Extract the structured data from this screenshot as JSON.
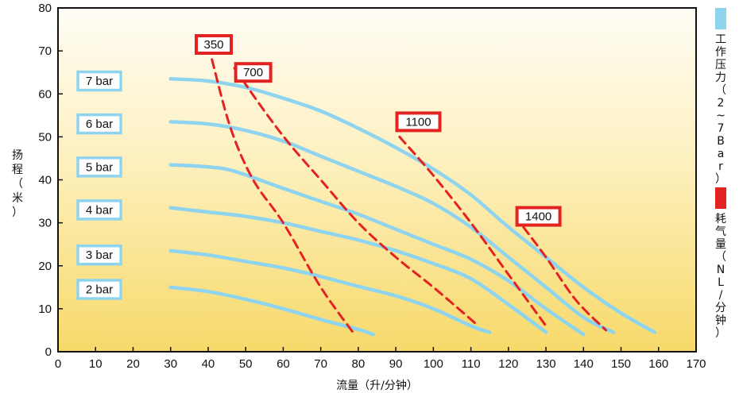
{
  "chart_data": {
    "type": "line",
    "xlabel": "流量（升/分钟）",
    "ylabel": "扬程（米）",
    "xlim": [
      0,
      170
    ],
    "ylim": [
      0,
      80
    ],
    "x_ticks": [
      "0",
      "10",
      "20",
      "30",
      "40",
      "50",
      "60",
      "70",
      "80",
      "90",
      "100",
      "110",
      "120",
      "130",
      "140",
      "150",
      "160",
      "170"
    ],
    "y_ticks": [
      "0",
      "10",
      "20",
      "30",
      "40",
      "50",
      "60",
      "70",
      "80"
    ],
    "grid": false,
    "legend_position": "right",
    "legend": [
      {
        "label": "工作压力（2~7Bar）",
        "color": "#8fd4ee"
      },
      {
        "label": "耗气量（NL/分钟）",
        "color": "#e32222"
      }
    ],
    "series": [
      {
        "name": "2 bar",
        "kind": "pressure",
        "color": "#8fd4ee",
        "points": [
          [
            30,
            15
          ],
          [
            40,
            14
          ],
          [
            50,
            12.2
          ],
          [
            60,
            10
          ],
          [
            70,
            7.5
          ],
          [
            80,
            5.2
          ],
          [
            84,
            4
          ]
        ]
      },
      {
        "name": "3 bar",
        "kind": "pressure",
        "color": "#8fd4ee",
        "points": [
          [
            30,
            23.5
          ],
          [
            40,
            22.5
          ],
          [
            50,
            21
          ],
          [
            60,
            19.5
          ],
          [
            70,
            17.5
          ],
          [
            80,
            15.2
          ],
          [
            90,
            13
          ],
          [
            100,
            10
          ],
          [
            110,
            6
          ],
          [
            115,
            4.5
          ]
        ]
      },
      {
        "name": "4 bar",
        "kind": "pressure",
        "color": "#8fd4ee",
        "points": [
          [
            30,
            33.5
          ],
          [
            40,
            32.5
          ],
          [
            50,
            31.5
          ],
          [
            60,
            30
          ],
          [
            70,
            28
          ],
          [
            80,
            26
          ],
          [
            90,
            23.5
          ],
          [
            100,
            20.5
          ],
          [
            110,
            17
          ],
          [
            120,
            11
          ],
          [
            130,
            4.5
          ]
        ]
      },
      {
        "name": "5 bar",
        "kind": "pressure",
        "color": "#8fd4ee",
        "points": [
          [
            30,
            43.5
          ],
          [
            40,
            43
          ],
          [
            47,
            42
          ],
          [
            60,
            38
          ],
          [
            70,
            35
          ],
          [
            80,
            32
          ],
          [
            90,
            28.5
          ],
          [
            100,
            25
          ],
          [
            110,
            21.5
          ],
          [
            120,
            16.5
          ],
          [
            130,
            10
          ],
          [
            140,
            4
          ]
        ]
      },
      {
        "name": "6 bar",
        "kind": "pressure",
        "color": "#8fd4ee",
        "points": [
          [
            30,
            53.5
          ],
          [
            40,
            53
          ],
          [
            50,
            51.5
          ],
          [
            60,
            49
          ],
          [
            70,
            45.5
          ],
          [
            80,
            42
          ],
          [
            90,
            38.5
          ],
          [
            100,
            34.5
          ],
          [
            110,
            29
          ],
          [
            120,
            22
          ],
          [
            130,
            15
          ],
          [
            140,
            8
          ],
          [
            148,
            4.5
          ]
        ]
      },
      {
        "name": "7 bar",
        "kind": "pressure",
        "color": "#8fd4ee",
        "points": [
          [
            30,
            63.5
          ],
          [
            40,
            63
          ],
          [
            50,
            61.5
          ],
          [
            60,
            59
          ],
          [
            70,
            56
          ],
          [
            80,
            52
          ],
          [
            90,
            47.5
          ],
          [
            100,
            42.5
          ],
          [
            110,
            36.5
          ],
          [
            120,
            29
          ],
          [
            130,
            22
          ],
          [
            140,
            15
          ],
          [
            150,
            9
          ],
          [
            159,
            4.5
          ]
        ]
      },
      {
        "name": "350",
        "kind": "air",
        "color": "#e32222",
        "points": [
          [
            41,
            68
          ],
          [
            46,
            52
          ],
          [
            52,
            40
          ],
          [
            60,
            30
          ],
          [
            70,
            15
          ],
          [
            79,
            4
          ]
        ]
      },
      {
        "name": "700",
        "kind": "air",
        "color": "#e32222",
        "points": [
          [
            47,
            66
          ],
          [
            55,
            56
          ],
          [
            62,
            48
          ],
          [
            70,
            40
          ],
          [
            80,
            30
          ],
          [
            90,
            22
          ],
          [
            100,
            15
          ],
          [
            112,
            6
          ]
        ]
      },
      {
        "name": "1100",
        "kind": "air",
        "color": "#e32222",
        "points": [
          [
            91,
            50
          ],
          [
            100,
            41
          ],
          [
            110,
            30
          ],
          [
            120,
            18
          ],
          [
            130,
            6
          ]
        ]
      },
      {
        "name": "1400",
        "kind": "air",
        "color": "#e32222",
        "points": [
          [
            124,
            29
          ],
          [
            130,
            22
          ],
          [
            138,
            12
          ],
          [
            146,
            5
          ]
        ]
      }
    ],
    "annotations": [
      {
        "text": "2 bar",
        "x": 11,
        "y": 14.5,
        "box": "blue"
      },
      {
        "text": "3 bar",
        "x": 11,
        "y": 22.5,
        "box": "blue"
      },
      {
        "text": "4 bar",
        "x": 11,
        "y": 33,
        "box": "blue"
      },
      {
        "text": "5 bar",
        "x": 11,
        "y": 43,
        "box": "blue"
      },
      {
        "text": "6 bar",
        "x": 11,
        "y": 53,
        "box": "blue"
      },
      {
        "text": "7 bar",
        "x": 11,
        "y": 63,
        "box": "blue"
      },
      {
        "text": "350",
        "x": 41.5,
        "y": 71.5,
        "box": "red"
      },
      {
        "text": "700",
        "x": 52,
        "y": 65,
        "box": "red"
      },
      {
        "text": "1100",
        "x": 96,
        "y": 53.5,
        "box": "red"
      },
      {
        "text": "1400",
        "x": 128,
        "y": 31.5,
        "box": "red"
      }
    ]
  }
}
